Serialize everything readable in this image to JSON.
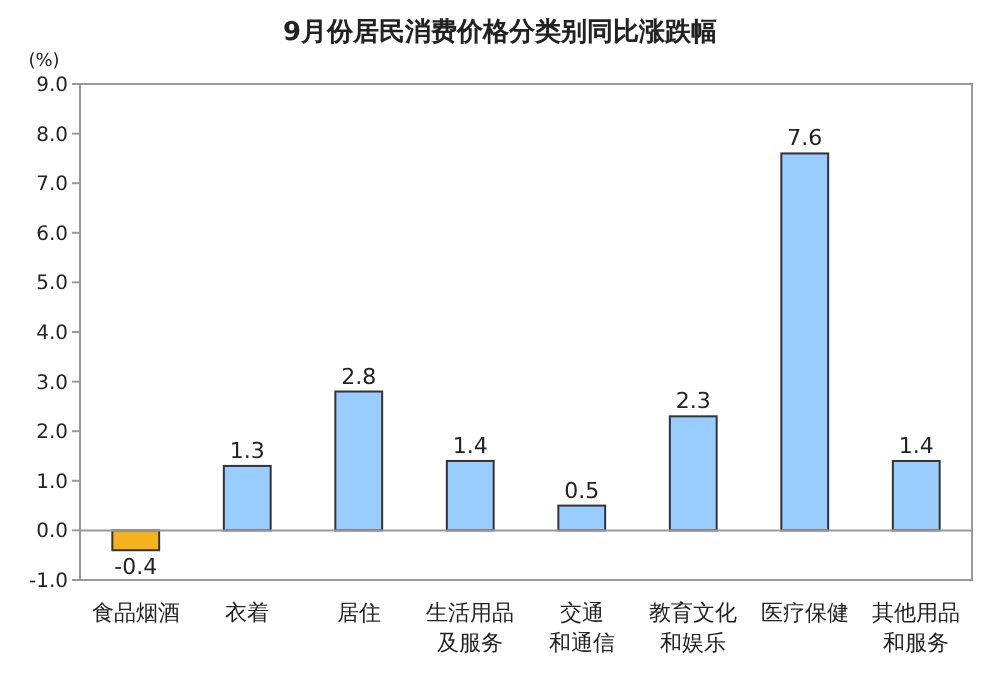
{
  "chart_data": {
    "type": "bar",
    "title": "9月份居民消费价格分类别同比涨跌幅",
    "ylabel": "(%)",
    "categories": [
      "食品烟酒",
      "衣着",
      "居住",
      "生活用品及服务",
      "交通和通信",
      "教育文化和娱乐",
      "医疗保健",
      "其他用品和服务"
    ],
    "values": [
      -0.4,
      1.3,
      2.8,
      1.4,
      0.5,
      2.3,
      7.6,
      1.4
    ],
    "colors": [
      "#f5b21c",
      "#99ccff",
      "#99ccff",
      "#99ccff",
      "#99ccff",
      "#99ccff",
      "#99ccff",
      "#99ccff"
    ],
    "ylim": [
      -1,
      9
    ],
    "yticks": [
      {
        "value": -1,
        "label": "-1.0"
      },
      {
        "value": 0,
        "label": "0.0"
      },
      {
        "value": 1,
        "label": "1.0"
      },
      {
        "value": 2,
        "label": "2.0"
      },
      {
        "value": 3,
        "label": "3.0"
      },
      {
        "value": 4,
        "label": "4.0"
      },
      {
        "value": 5,
        "label": "5.0"
      },
      {
        "value": 6,
        "label": "6.0"
      },
      {
        "value": 7,
        "label": "7.0"
      },
      {
        "value": 8,
        "label": "8.0"
      },
      {
        "value": 9,
        "label": "9.0"
      }
    ],
    "data_labels": true
  }
}
